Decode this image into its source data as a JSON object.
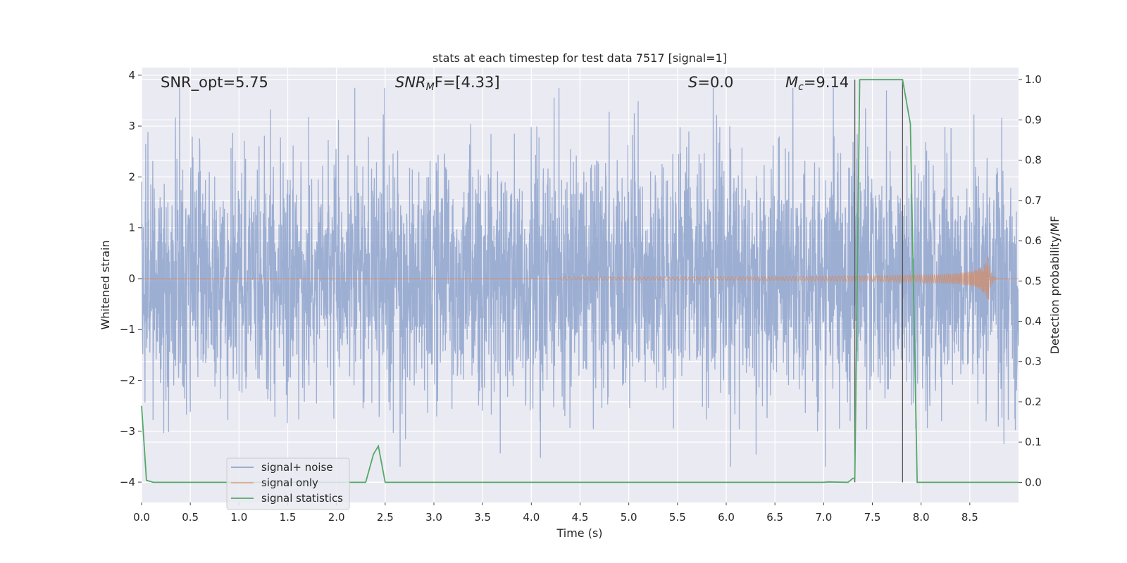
{
  "chart_data": {
    "type": "line",
    "title": "stats at each timestep for test data 7517 [signal=1]",
    "xlabel": "Time (s)",
    "ylabel_left": "Whitened strain",
    "ylabel_right": "Detection probability/MF",
    "xlim": [
      0,
      9.0
    ],
    "ylim_left": [
      -4.4,
      4.15
    ],
    "ylim_right": [
      -0.05,
      1.03
    ],
    "x_ticks": [
      "0.0",
      "0.5",
      "1.0",
      "1.5",
      "2.0",
      "2.5",
      "3.0",
      "3.5",
      "4.0",
      "4.5",
      "5.0",
      "5.5",
      "6.0",
      "6.5",
      "7.0",
      "7.5",
      "8.0",
      "8.5"
    ],
    "x_tick_values": [
      0,
      0.5,
      1,
      1.5,
      2,
      2.5,
      3,
      3.5,
      4,
      4.5,
      5,
      5.5,
      6,
      6.5,
      7,
      7.5,
      8,
      8.5
    ],
    "y_ticks_left": [
      "−4",
      "−3",
      "−2",
      "−1",
      "0",
      "1",
      "2",
      "3",
      "4"
    ],
    "y_tick_values_left": [
      -4,
      -3,
      -2,
      -1,
      0,
      1,
      2,
      3,
      4
    ],
    "y_ticks_right": [
      "0.0",
      "0.1",
      "0.2",
      "0.3",
      "0.4",
      "0.5",
      "0.6",
      "0.7",
      "0.8",
      "0.9",
      "1.0"
    ],
    "y_tick_values_right": [
      0,
      0.1,
      0.2,
      0.3,
      0.4,
      0.5,
      0.6,
      0.7,
      0.8,
      0.9,
      1.0
    ],
    "grid": true,
    "legend_placement": "lower-left",
    "annotations": {
      "snr_opt": "SNR_opt=5.75",
      "snr_mf_main": "SNR",
      "snr_mf_sub": "M",
      "snr_mf_rest": "F=[4.33]",
      "s_main": "S",
      "s_rest": "=0.0",
      "mc_main": "M",
      "mc_sub": "c",
      "mc_rest": "=9.14"
    },
    "vertical_lines_x": [
      7.32,
      7.81
    ],
    "series": [
      {
        "name": "signal+ noise",
        "color": "#8ea3cc",
        "axis": "left",
        "noise_amplitude": 1.2,
        "duration": 9.0
      },
      {
        "name": "signal only",
        "color": "#dd8452",
        "axis": "left",
        "chirp_start": 4.3,
        "chirp_peak_time": 8.68,
        "chirp_peak_amplitude": 0.62
      },
      {
        "name": "signal statistics",
        "color": "#55a868",
        "axis": "right",
        "x": [
          0.0,
          0.05,
          0.12,
          0.5,
          1.0,
          2.0,
          2.3,
          2.38,
          2.43,
          2.5,
          3.0,
          4.0,
          5.0,
          6.0,
          7.0,
          7.05,
          7.25,
          7.3,
          7.32,
          7.37,
          7.5,
          7.7,
          7.81,
          7.89,
          7.96,
          8.0,
          8.5,
          9.0
        ],
        "y": [
          0.19,
          0.005,
          0.0,
          0.0,
          0.0,
          0.0,
          0.0,
          0.07,
          0.09,
          0.0,
          0.0,
          0.0,
          0.0,
          0.0,
          0.0,
          0.001,
          0.0,
          0.01,
          0.01,
          1.0,
          1.0,
          1.0,
          1.0,
          0.89,
          0.0,
          0.0,
          0.0,
          0.0
        ]
      }
    ]
  }
}
